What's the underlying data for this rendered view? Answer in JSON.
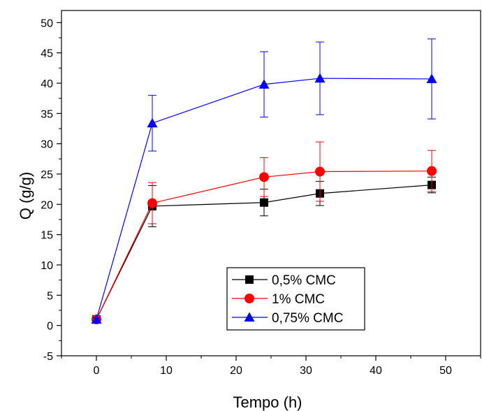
{
  "chart_data": {
    "type": "line",
    "title": "",
    "xlabel": "Tempo (h)",
    "ylabel": "Q (g/g)",
    "xlim": [
      -5,
      55
    ],
    "ylim": [
      -5,
      52
    ],
    "xticks": [
      0,
      10,
      20,
      30,
      40,
      50
    ],
    "yticks": [
      -5,
      0,
      5,
      10,
      15,
      20,
      25,
      30,
      35,
      40,
      45,
      50
    ],
    "grid": false,
    "legend_position": "bottom-center",
    "series": [
      {
        "name": "0,5% CMC",
        "color": "#000000",
        "marker": "square",
        "x": [
          0,
          8,
          24,
          32,
          48
        ],
        "y": [
          1.0,
          19.7,
          20.3,
          21.8,
          23.2
        ],
        "err": [
          0.3,
          3.4,
          2.2,
          2.0,
          1.3
        ]
      },
      {
        "name": "1% CMC",
        "color": "#ff0000",
        "marker": "circle",
        "x": [
          0,
          8,
          24,
          32,
          48
        ],
        "y": [
          1.0,
          20.2,
          24.5,
          25.4,
          25.5
        ],
        "err": [
          0.3,
          3.4,
          3.2,
          4.9,
          3.4
        ]
      },
      {
        "name": "0,75% CMC",
        "color": "#0000ff",
        "marker": "triangle",
        "x": [
          0,
          8,
          24,
          32,
          48
        ],
        "y": [
          1.0,
          33.4,
          39.8,
          40.8,
          40.7
        ],
        "err": [
          0.3,
          4.6,
          5.4,
          6.0,
          6.6
        ]
      }
    ]
  }
}
